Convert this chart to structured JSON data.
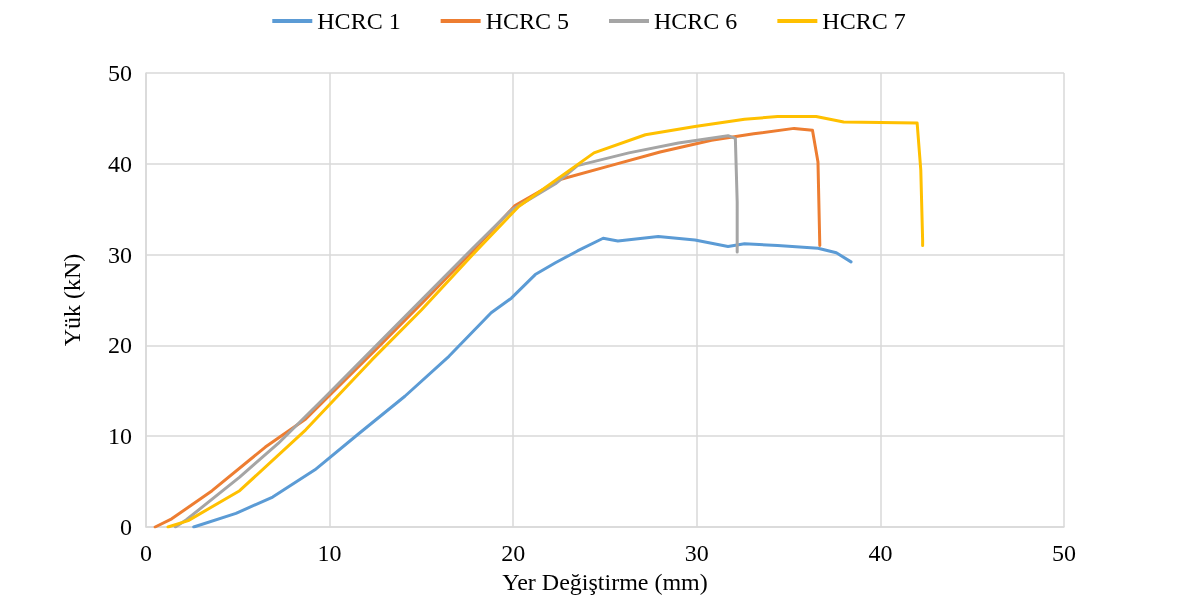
{
  "chart_data": {
    "type": "line",
    "xlabel": "Yer Değiştirme (mm)",
    "ylabel": "Yük (kN)",
    "xlim": [
      0,
      50
    ],
    "xticks": [
      0,
      10,
      20,
      30,
      40,
      50
    ],
    "ylim": [
      0,
      50
    ],
    "yticks": [
      0,
      10,
      20,
      30,
      40,
      50
    ],
    "grid": true,
    "legend": "top",
    "marker": "none",
    "line_style": "solid",
    "series": [
      {
        "name": "HCRC 1",
        "color": "#5b9bd5",
        "x": [
          2.6,
          4.9,
          6.9,
          9.2,
          11.6,
          14.1,
          16.5,
          18.8,
          19.9,
          21.2,
          22.3,
          23.5,
          24.9,
          25.7,
          27.9,
          29.9,
          31.7,
          32.6,
          34.4,
          36.6,
          37.6,
          38.4
        ],
        "values": [
          0,
          1.5,
          3.3,
          6.3,
          10.3,
          14.4,
          18.8,
          23.6,
          25.2,
          27.8,
          29.1,
          30.4,
          31.8,
          31.5,
          32.0,
          31.6,
          30.9,
          31.2,
          31.0,
          30.7,
          30.2,
          29.2
        ]
      },
      {
        "name": "HCRC 5",
        "color": "#ed7d31",
        "x": [
          0.5,
          1.4,
          3.6,
          6.5,
          8.7,
          10.1,
          12.7,
          15.2,
          17.7,
          20.1,
          22.6,
          25.3,
          28.0,
          30.8,
          33.1,
          35.3,
          36.3,
          36.6,
          36.7
        ],
        "values": [
          0,
          0.9,
          4.0,
          8.8,
          11.9,
          14.7,
          19.9,
          25.0,
          30.2,
          35.4,
          38.3,
          39.8,
          41.3,
          42.6,
          43.3,
          43.9,
          43.7,
          40.2,
          31.0
        ]
      },
      {
        "name": "HCRC 6",
        "color": "#a5a5a5",
        "x": [
          1.6,
          2.2,
          5.1,
          7.2,
          9.8,
          12.7,
          15.2,
          17.7,
          19.9,
          22.3,
          23.5,
          26.3,
          29.0,
          31.7,
          32.1,
          32.2,
          32.2
        ],
        "values": [
          0,
          0.8,
          5.5,
          9.2,
          14.4,
          20.3,
          25.4,
          30.5,
          34.9,
          37.8,
          39.8,
          41.2,
          42.3,
          43.1,
          42.8,
          35.8,
          30.3
        ]
      },
      {
        "name": "HCRC 7",
        "color": "#ffc000",
        "x": [
          1.2,
          2.3,
          5.1,
          8.7,
          12.3,
          15.0,
          17.7,
          20.3,
          21.7,
          24.4,
          27.2,
          29.9,
          32.6,
          34.4,
          36.5,
          38.0,
          42.0,
          42.2,
          42.3,
          42.3
        ],
        "values": [
          0,
          0.7,
          4.0,
          10.7,
          18.4,
          23.9,
          29.8,
          35.3,
          37.3,
          41.2,
          43.2,
          44.1,
          44.9,
          45.2,
          45.2,
          44.6,
          44.5,
          39.3,
          31.6,
          31.0
        ]
      }
    ]
  }
}
